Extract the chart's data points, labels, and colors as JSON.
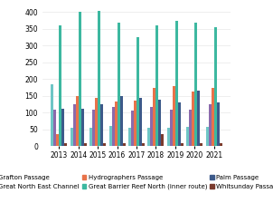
{
  "years": [
    2013,
    2014,
    2015,
    2016,
    2017,
    2018,
    2019,
    2020,
    2021
  ],
  "series_order": [
    "Grafton Passage",
    "Great North East Channel",
    "Hydrographers Passage",
    "Great Barrier Reef North (inner route)",
    "Palm Passage",
    "Whitsunday Passage"
  ],
  "series": {
    "Grafton Passage": {
      "color": "#6ec6c6",
      "values": [
        185,
        55,
        55,
        60,
        55,
        55,
        55,
        58,
        58
      ]
    },
    "Great North East Channel": {
      "color": "#8b6aac",
      "values": [
        108,
        125,
        110,
        118,
        105,
        118,
        108,
        108,
        125
      ]
    },
    "Hydrographers Passage": {
      "color": "#e8734a",
      "values": [
        35,
        150,
        145,
        133,
        135,
        175,
        180,
        162,
        175
      ]
    },
    "Great Barrier Reef North (inner route)": {
      "color": "#3db8a0",
      "values": [
        360,
        400,
        405,
        368,
        325,
        360,
        375,
        370,
        355
      ]
    },
    "Palm Passage": {
      "color": "#3d5a8a",
      "values": [
        112,
        112,
        125,
        150,
        145,
        138,
        132,
        165,
        132
      ]
    },
    "Whitsunday Passage": {
      "color": "#7a3b2e",
      "values": [
        8,
        10,
        10,
        8,
        8,
        35,
        10,
        8,
        8
      ]
    }
  },
  "background_color": "#ffffff",
  "grid_color": "#e8e8e8",
  "legend_fontsize": 5.0,
  "tick_fontsize": 5.5,
  "bar_width": 0.14
}
